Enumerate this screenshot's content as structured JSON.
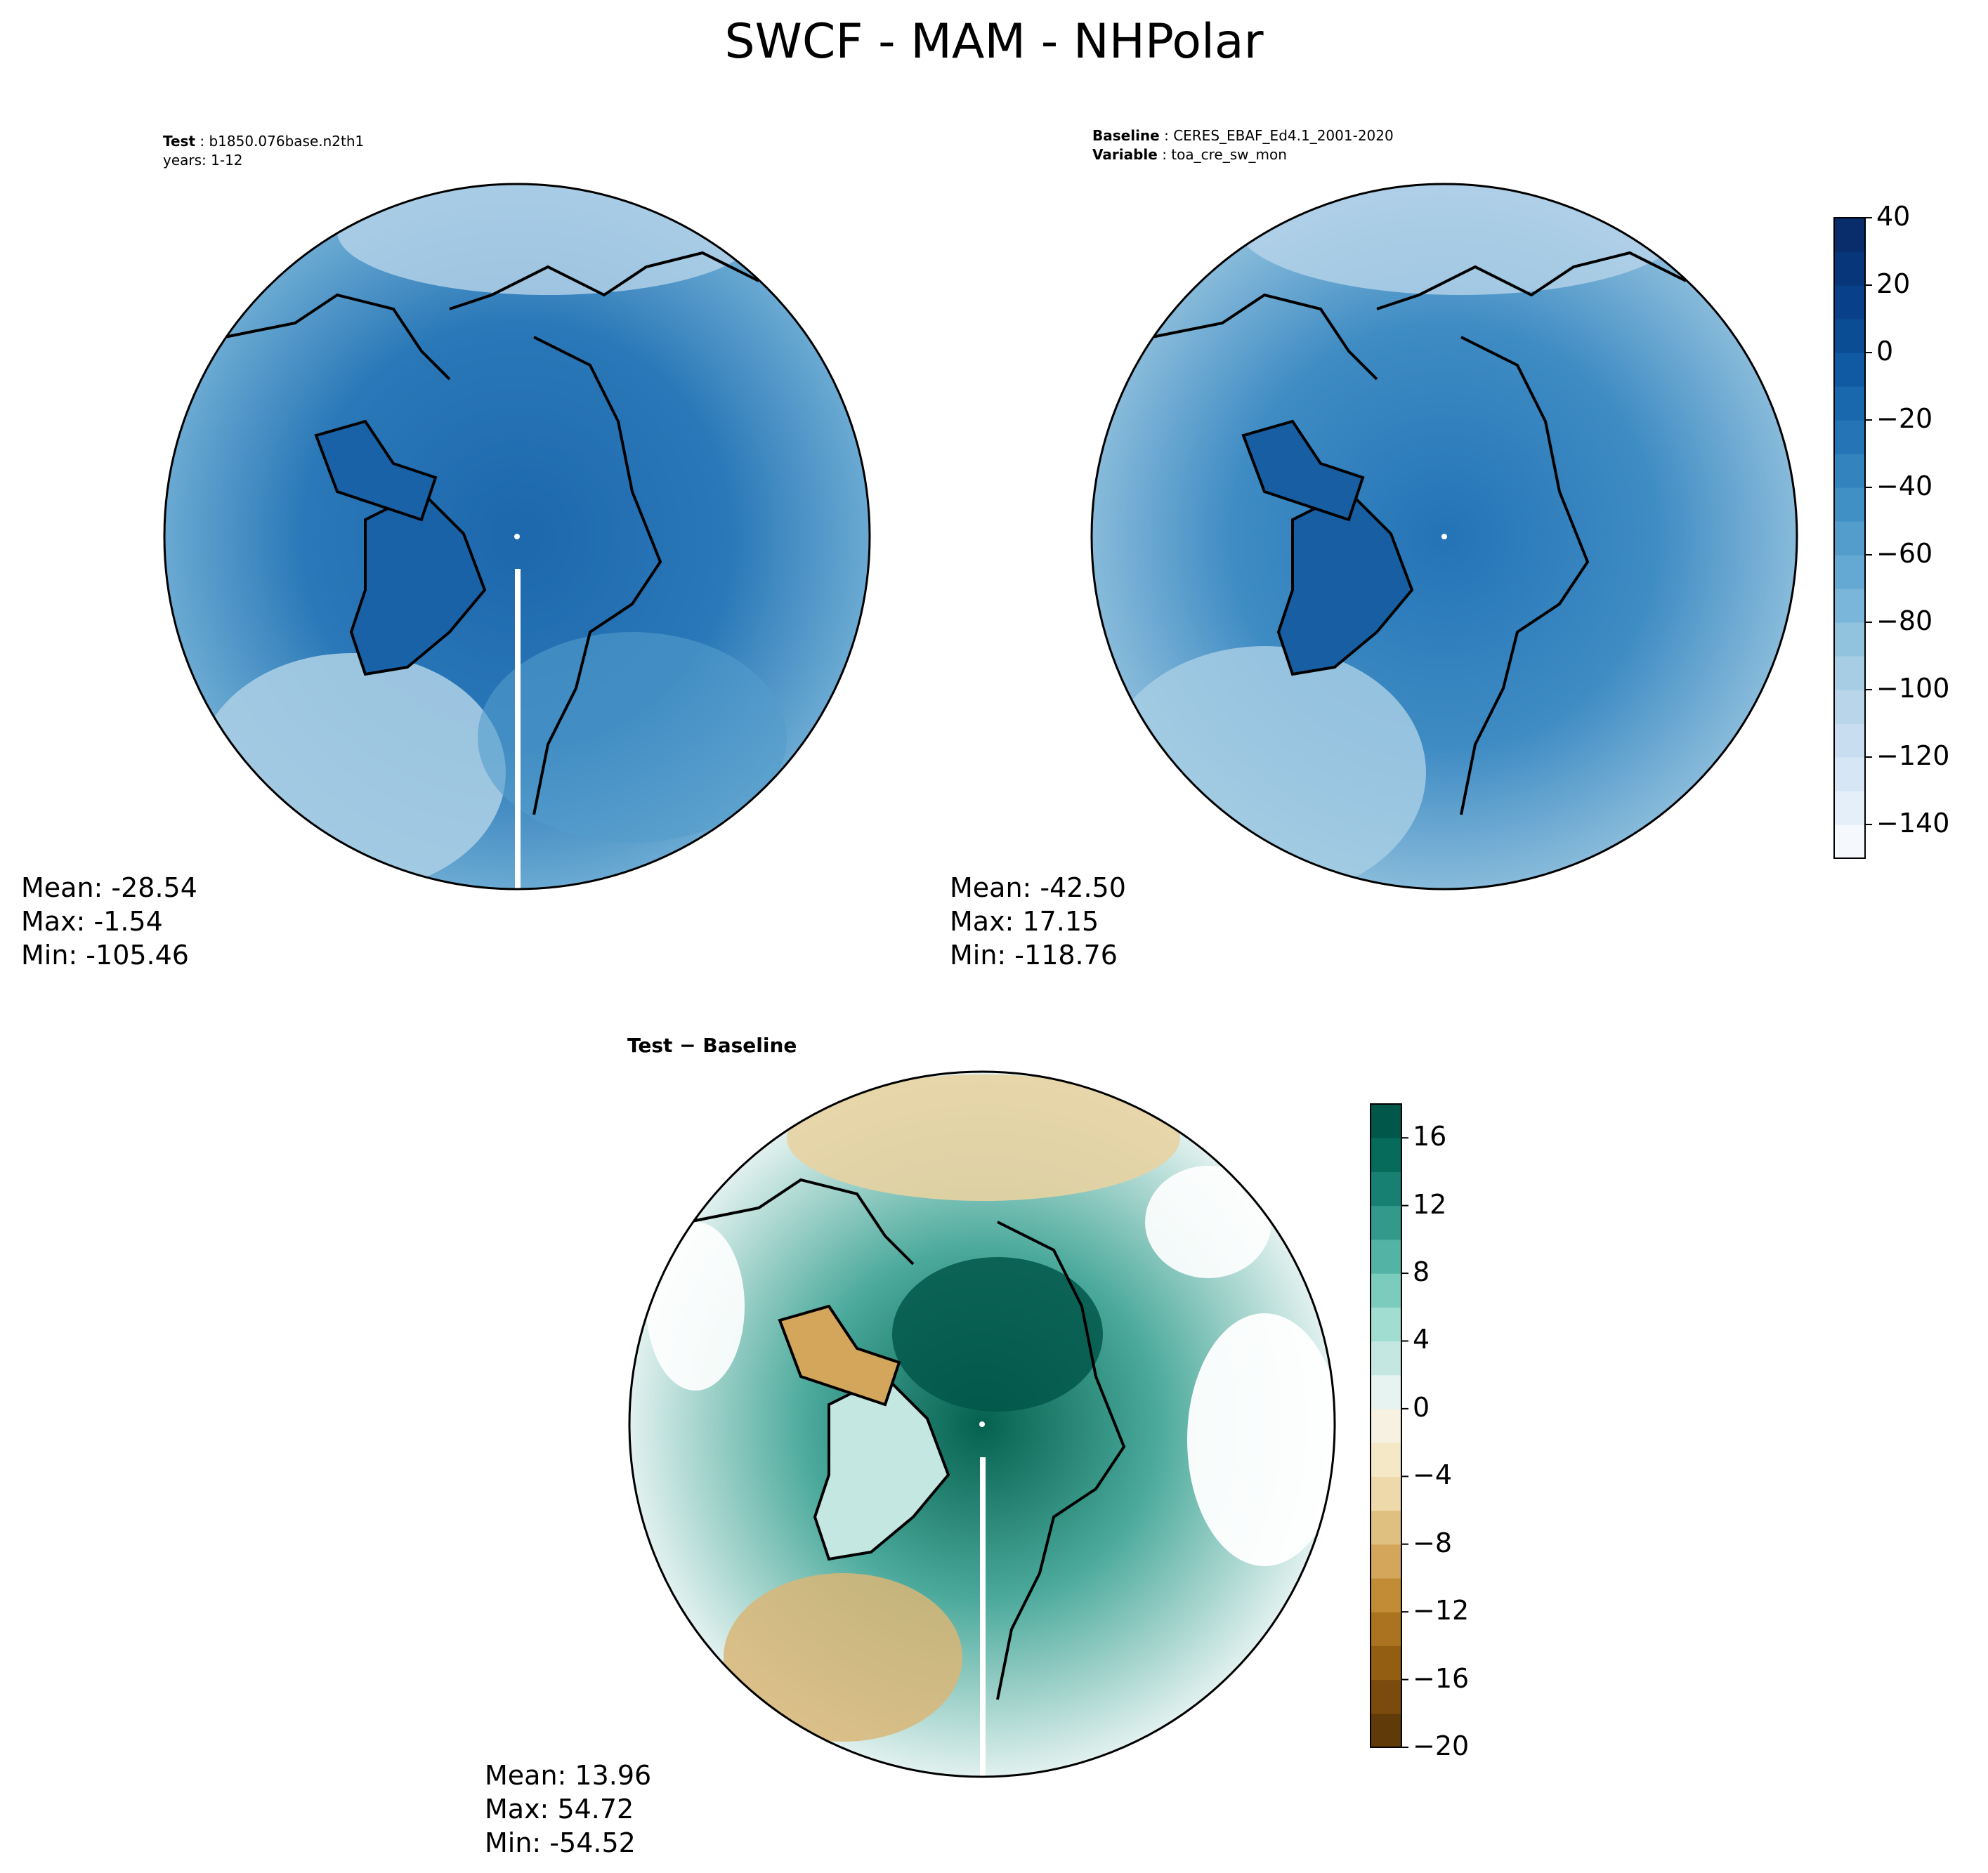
{
  "title": "SWCF - MAM - NHPolar",
  "panels": [
    {
      "id": "test",
      "header": [
        {
          "label": "Test",
          "value": "b1850.076base.n2th1"
        },
        {
          "label": "",
          "value": "years: 1-12"
        }
      ],
      "stats": {
        "mean": "Mean: -28.54",
        "max": "Max: -1.54",
        "min": "Min: -105.46"
      }
    },
    {
      "id": "baseline",
      "header": [
        {
          "label": "Baseline",
          "value": "CERES_EBAF_Ed4.1_2001-2020"
        },
        {
          "label": "Variable",
          "value": "toa_cre_sw_mon"
        }
      ],
      "stats": {
        "mean": "Mean: -42.50",
        "max": "Max: 17.15",
        "min": "Min: -118.76"
      }
    },
    {
      "id": "diff",
      "header": [
        {
          "label": "Test",
          "value": "Baseline"
        }
      ],
      "header_text": "Test − Baseline",
      "stats": {
        "mean": "Mean: 13.96",
        "max": "Max: 54.72",
        "min": "Min: -54.52"
      }
    }
  ],
  "colorbars": [
    {
      "id": "blues",
      "levels": [
        -150,
        -140,
        -130,
        -120,
        -110,
        -100,
        -90,
        -80,
        -70,
        -60,
        -50,
        -40,
        -30,
        -20,
        -10,
        0,
        10,
        20,
        30,
        40
      ],
      "tick_labels": [
        "40",
        "20",
        "0",
        "−20",
        "−40",
        "−60",
        "−80",
        "−100",
        "−120",
        "−140"
      ],
      "tick_values": [
        40,
        20,
        0,
        -20,
        -40,
        -60,
        -80,
        -100,
        -120,
        -140
      ],
      "colors": [
        "#f5f9fe",
        "#e4eff9",
        "#d6e6f4",
        "#c8ddf0",
        "#b8d5ea",
        "#a6cde4",
        "#91c3de",
        "#7ab6d9",
        "#64a9d3",
        "#539dcc",
        "#4190c5",
        "#3383be",
        "#2474b6",
        "#1967ad",
        "#0f5aa3",
        "#0b4d94",
        "#08418a",
        "#08367a",
        "#082d6a"
      ]
    },
    {
      "id": "brbg",
      "levels": [
        -20,
        -18,
        -16,
        -14,
        -12,
        -10,
        -8,
        -6,
        -4,
        -2,
        0,
        2,
        4,
        6,
        8,
        10,
        12,
        14,
        16,
        18
      ],
      "tick_labels": [
        "16",
        "12",
        "8",
        "4",
        "0",
        "−4",
        "−8",
        "−12",
        "−16",
        "−20"
      ],
      "tick_values": [
        16,
        12,
        8,
        4,
        0,
        -4,
        -8,
        -12,
        -16,
        -20
      ],
      "colors": [
        "#603a08",
        "#7a4b0c",
        "#935d12",
        "#ab731f",
        "#c28b35",
        "#d3a65c",
        "#e0c081",
        "#eed9aa",
        "#f5e8c6",
        "#f7f1e1",
        "#e6f3f0",
        "#c4e8e1",
        "#a1ddd1",
        "#7bccbc",
        "#53b3a4",
        "#33998b",
        "#188072",
        "#066b5b",
        "#01574a"
      ]
    }
  ],
  "maps": {
    "test": {
      "pole_color": "#1d67ad",
      "edge_color": "#7ab6d9",
      "land_color": "#1e66ac"
    },
    "baseline": {
      "pole_color": "#2473b6",
      "edge_color": "#9ac6e0",
      "land_color": "#1d62a8"
    },
    "diff": {
      "pole_color": "#05614f",
      "edge_color": "#ffffff",
      "land_color": "#e9d3a0"
    }
  }
}
